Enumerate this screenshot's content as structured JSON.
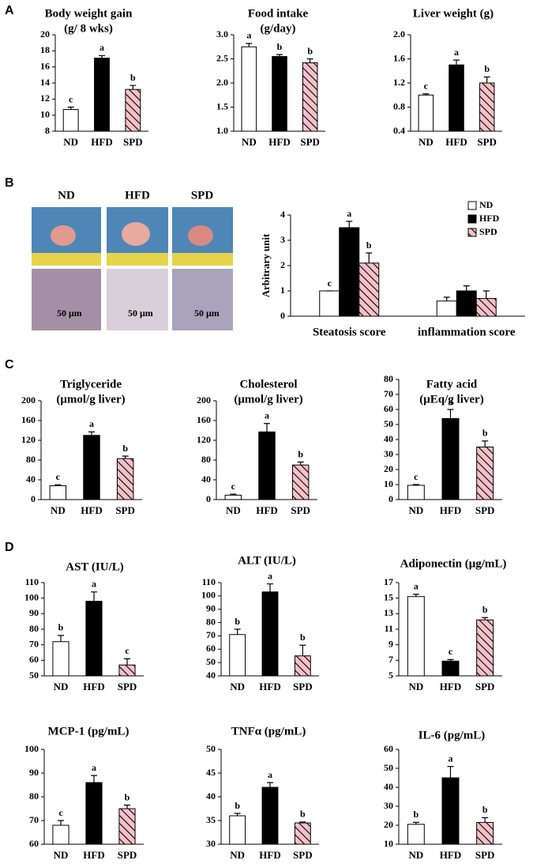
{
  "panel_labels": [
    "A",
    "B",
    "C",
    "D"
  ],
  "image_labels": [
    "ND",
    "HFD",
    "SPD"
  ],
  "scale_labels": [
    "50 μm",
    "50 μm",
    "50 μm"
  ],
  "chart_data": [
    {
      "type": "bar",
      "title": [
        "Body weight gain",
        "(g/ 8 wks)"
      ],
      "categories": [
        "ND",
        "HFD",
        "SPD"
      ],
      "values": [
        10.7,
        17.1,
        13.2
      ],
      "errors": [
        0.3,
        0.3,
        0.5
      ],
      "annotations": [
        "c",
        "a",
        "b"
      ],
      "colors": [
        "#ffffff",
        "#000000",
        "#f5c0c8"
      ],
      "hatched": [
        false,
        false,
        true
      ],
      "ylim": [
        8,
        20
      ],
      "yticks": [
        8,
        10,
        12,
        14,
        16,
        18,
        20
      ]
    },
    {
      "type": "bar",
      "title": [
        "Food intake",
        "(g/day)"
      ],
      "categories": [
        "ND",
        "HFD",
        "SPD"
      ],
      "values": [
        2.75,
        2.55,
        2.42
      ],
      "errors": [
        0.07,
        0.04,
        0.08
      ],
      "annotations": [
        "a",
        "b",
        "b"
      ],
      "colors": [
        "#ffffff",
        "#000000",
        "#f5c0c8"
      ],
      "hatched": [
        false,
        false,
        true
      ],
      "ylim": [
        1,
        3
      ],
      "yticks": [
        {
          "value": 1,
          "label": "1.0"
        },
        1.5,
        {
          "value": 2,
          "label": "2.0"
        },
        2.5,
        {
          "value": 3,
          "label": "3.0"
        }
      ]
    },
    {
      "type": "bar",
      "title": [
        "Liver weight (g)"
      ],
      "categories": [
        "ND",
        "HFD",
        "SPD"
      ],
      "values": [
        1.0,
        1.5,
        1.2
      ],
      "errors": [
        0.02,
        0.08,
        0.1
      ],
      "annotations": [
        "c",
        "a",
        "b"
      ],
      "colors": [
        "#ffffff",
        "#000000",
        "#f5c0c8"
      ],
      "hatched": [
        false,
        false,
        true
      ],
      "ylim": [
        0.4,
        2
      ],
      "yticks": [
        0.4,
        0.8,
        1.2,
        1.6,
        {
          "value": 2,
          "label": "2.0"
        }
      ]
    },
    {
      "type": "grouped_bar",
      "y_label": "Arbitrary unit",
      "categories": [
        "Steatosis score",
        "inflammation score"
      ],
      "legend": "upper right",
      "ylim": [
        0,
        4
      ],
      "yticks": [
        0,
        1,
        2,
        3,
        4
      ],
      "series": [
        {
          "name": "ND",
          "color": "#ffffff",
          "hatched": false,
          "values": [
            1.0,
            0.6
          ],
          "errors": [
            0.0,
            0.15
          ],
          "annotations": [
            "c",
            null
          ]
        },
        {
          "name": "HFD",
          "color": "#000000",
          "hatched": false,
          "values": [
            3.5,
            1.0
          ],
          "errors": [
            0.25,
            0.2
          ],
          "annotations": [
            "a",
            null
          ]
        },
        {
          "name": "SPD",
          "color": "#f5c0c8",
          "hatched": true,
          "values": [
            2.1,
            0.7
          ],
          "errors": [
            0.4,
            0.3
          ],
          "annotations": [
            "b",
            null
          ]
        }
      ]
    },
    {
      "type": "bar",
      "title": [
        "Triglyceride",
        "(μmol/g liver)"
      ],
      "categories": [
        "ND",
        "HFD",
        "SPD"
      ],
      "values": [
        28,
        130,
        83
      ],
      "errors": [
        2,
        7,
        5
      ],
      "annotations": [
        "c",
        "a",
        "b"
      ],
      "colors": [
        "#ffffff",
        "#000000",
        "#f5c0c8"
      ],
      "hatched": [
        false,
        false,
        true
      ],
      "ylim": [
        0,
        200
      ],
      "yticks": [
        0,
        40,
        80,
        120,
        160,
        200
      ]
    },
    {
      "type": "bar",
      "title": [
        "Cholesterol",
        "(μmol/g liver)"
      ],
      "categories": [
        "ND",
        "HFD",
        "SPD"
      ],
      "values": [
        9,
        137,
        70
      ],
      "errors": [
        2,
        17,
        6
      ],
      "annotations": [
        "c",
        "a",
        "b"
      ],
      "colors": [
        "#ffffff",
        "#000000",
        "#f5c0c8"
      ],
      "hatched": [
        false,
        false,
        true
      ],
      "ylim": [
        0,
        200
      ],
      "yticks": [
        0,
        40,
        80,
        120,
        160,
        200
      ]
    },
    {
      "type": "bar",
      "title": [
        "Fatty acid",
        "(μEq/g liver)"
      ],
      "categories": [
        "ND",
        "HFD",
        "SPD"
      ],
      "values": [
        9.5,
        54,
        35
      ],
      "errors": [
        0.5,
        6,
        4
      ],
      "annotations": [
        "c",
        "a",
        "b"
      ],
      "colors": [
        "#ffffff",
        "#000000",
        "#f5c0c8"
      ],
      "hatched": [
        false,
        false,
        true
      ],
      "ylim": [
        0,
        80
      ],
      "yticks": [
        0,
        10,
        20,
        30,
        40,
        50,
        60,
        70,
        80
      ]
    },
    {
      "type": "bar",
      "title": [
        "AST (IU/L)"
      ],
      "categories": [
        "ND",
        "HFD",
        "SPD"
      ],
      "values": [
        72,
        98,
        57
      ],
      "errors": [
        4,
        6,
        4
      ],
      "annotations": [
        "b",
        "a",
        "c"
      ],
      "colors": [
        "#ffffff",
        "#000000",
        "#f5c0c8"
      ],
      "hatched": [
        false,
        false,
        true
      ],
      "ylim": [
        50,
        110
      ],
      "yticks": [
        50,
        60,
        70,
        80,
        90,
        100,
        110
      ]
    },
    {
      "type": "bar",
      "title": [
        "ALT (IU/L)"
      ],
      "categories": [
        "ND",
        "HFD",
        "SPD"
      ],
      "values": [
        71,
        103,
        55
      ],
      "errors": [
        4,
        6,
        8
      ],
      "annotations": [
        "b",
        "a",
        "b"
      ],
      "colors": [
        "#ffffff",
        "#000000",
        "#f5c0c8"
      ],
      "hatched": [
        false,
        false,
        true
      ],
      "ylim": [
        40,
        110
      ],
      "yticks": [
        40,
        50,
        60,
        70,
        80,
        90,
        100,
        110
      ]
    },
    {
      "type": "bar",
      "title": [
        "Adiponectin (μg/mL)"
      ],
      "categories": [
        "ND",
        "HFD",
        "SPD"
      ],
      "values": [
        15.2,
        6.9,
        12.2
      ],
      "errors": [
        0.3,
        0.2,
        0.3
      ],
      "annotations": [
        "a",
        "c",
        "b"
      ],
      "colors": [
        "#ffffff",
        "#000000",
        "#f5c0c8"
      ],
      "hatched": [
        false,
        false,
        true
      ],
      "ylim": [
        5,
        17
      ],
      "yticks": [
        5,
        7,
        9,
        11,
        13,
        15,
        17
      ]
    },
    {
      "type": "bar",
      "title": [
        "MCP-1 (pg/mL)"
      ],
      "categories": [
        "ND",
        "HFD",
        "SPD"
      ],
      "values": [
        68,
        86,
        75
      ],
      "errors": [
        2,
        3,
        1.5
      ],
      "annotations": [
        "c",
        "a",
        "b"
      ],
      "colors": [
        "#ffffff",
        "#000000",
        "#f5c0c8"
      ],
      "hatched": [
        false,
        false,
        true
      ],
      "ylim": [
        60,
        100
      ],
      "yticks": [
        60,
        70,
        80,
        90,
        100
      ]
    },
    {
      "type": "bar",
      "title": [
        "TNFα (pg/mL)"
      ],
      "categories": [
        "ND",
        "HFD",
        "SPD"
      ],
      "values": [
        36,
        42,
        34.5
      ],
      "errors": [
        0.5,
        1,
        0.2
      ],
      "annotations": [
        "b",
        "a",
        "b"
      ],
      "colors": [
        "#ffffff",
        "#000000",
        "#f5c0c8"
      ],
      "hatched": [
        false,
        false,
        true
      ],
      "ylim": [
        30,
        50
      ],
      "yticks": [
        30,
        35,
        40,
        45,
        50
      ]
    },
    {
      "type": "bar",
      "title": [
        "IL-6 (pg/mL)"
      ],
      "categories": [
        "ND",
        "HFD",
        "SPD"
      ],
      "values": [
        20.5,
        45,
        21.5
      ],
      "errors": [
        1,
        6,
        2.5
      ],
      "annotations": [
        "b",
        "a",
        "b"
      ],
      "colors": [
        "#ffffff",
        "#000000",
        "#f5c0c8"
      ],
      "hatched": [
        false,
        false,
        true
      ],
      "ylim": [
        10,
        60
      ],
      "yticks": [
        10,
        20,
        30,
        40,
        50,
        60
      ]
    }
  ]
}
